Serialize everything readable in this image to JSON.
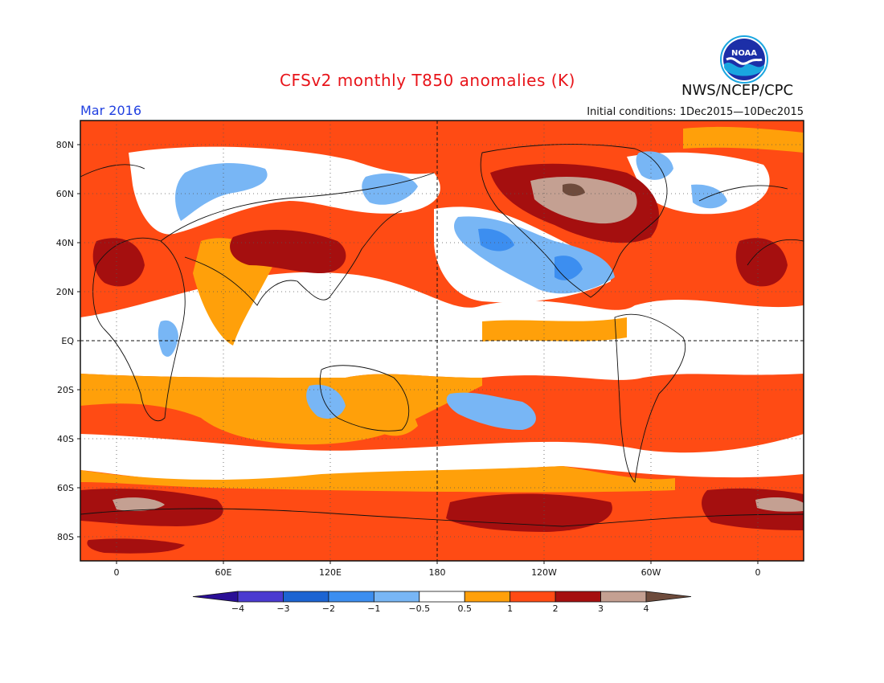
{
  "header": {
    "title": "CFSv2 monthly T850 anomalies (K)",
    "agency": "NWS/NCEP/CPC",
    "logo_text": "NOAA",
    "valid_month": "Mar 2016",
    "initial_conditions": "Initial conditions: 1Dec2015—10Dec2015"
  },
  "map": {
    "projection": "equirectangular",
    "lon_ticks": [
      "0",
      "60E",
      "120E",
      "180",
      "120W",
      "60W",
      "0"
    ],
    "lat_ticks": [
      "80N",
      "60N",
      "40N",
      "20N",
      "EQ",
      "20S",
      "40S",
      "60S",
      "80S"
    ],
    "reference_lines": [
      "EQ",
      "180"
    ],
    "grid": "dotted"
  },
  "colorbar": {
    "unit": "K",
    "tick_labels": [
      "−4",
      "−3",
      "−2",
      "−1",
      "−0.5",
      "0.5",
      "1",
      "2",
      "3",
      "4"
    ],
    "bins": [
      {
        "range": "< -4",
        "color": "#2a0f96"
      },
      {
        "range": "-4 to -3",
        "color": "#4a3ad0"
      },
      {
        "range": "-3 to -2",
        "color": "#1c64d2"
      },
      {
        "range": "-2 to -1",
        "color": "#3c8ef0"
      },
      {
        "range": "-1 to -0.5",
        "color": "#78b6f5"
      },
      {
        "range": "-0.5 to 0.5",
        "color": "#ffffff"
      },
      {
        "range": "0.5 to 1",
        "color": "#ffa00a"
      },
      {
        "range": "1 to 2",
        "color": "#ff4b14"
      },
      {
        "range": "2 to 3",
        "color": "#a50f0f"
      },
      {
        "range": "3 to 4",
        "color": "#c4a092"
      },
      {
        "range": "> 4",
        "color": "#6e4b3c"
      }
    ]
  },
  "colors": {
    "title": "#e8141a",
    "valid_month": "#2040e0",
    "background_anomaly": "#ff4b14"
  }
}
